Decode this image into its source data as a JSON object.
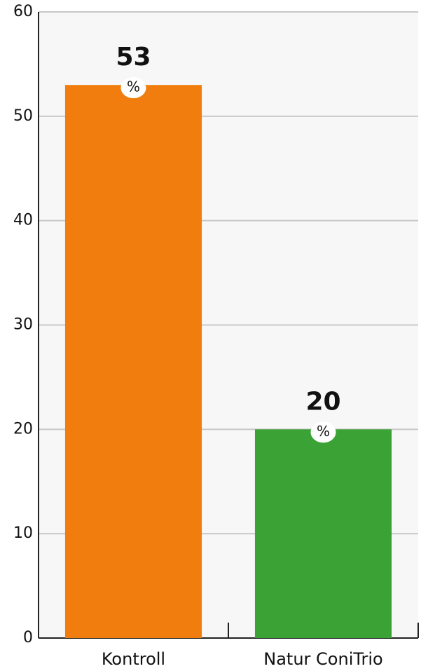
{
  "chart_data": {
    "type": "bar",
    "categories": [
      "Kontroll",
      "Natur ConiTrio"
    ],
    "values": [
      53,
      20
    ],
    "value_unit": "%",
    "colors": [
      "#f07d0e",
      "#3ba336"
    ],
    "ylim": [
      0,
      60
    ],
    "yticks": [
      0,
      10,
      20,
      30,
      40,
      50,
      60
    ],
    "grid": true
  }
}
